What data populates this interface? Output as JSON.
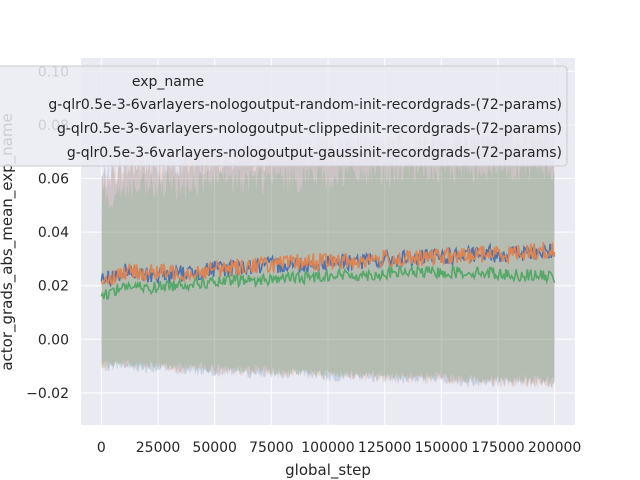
{
  "chart_data": {
    "type": "line",
    "title": "",
    "xlabel": "global_step",
    "ylabel": "actor_grads_abs_mean_exp_name",
    "xlim": [
      -9000,
      209000
    ],
    "ylim": [
      -0.032,
      0.105
    ],
    "xticks": [
      0,
      25000,
      50000,
      75000,
      100000,
      125000,
      150000,
      175000,
      200000
    ],
    "yticks": [
      -0.02,
      0.0,
      0.02,
      0.04,
      0.06,
      0.08,
      0.1
    ],
    "ytick_labels": [
      "−0.02",
      "0.00",
      "0.02",
      "0.04",
      "0.06",
      "0.08",
      "0.10"
    ],
    "grid": true,
    "legend_placement": "top",
    "legend_title": "exp_name",
    "x": [
      0,
      10000,
      20000,
      30000,
      40000,
      50000,
      60000,
      70000,
      80000,
      90000,
      100000,
      110000,
      120000,
      130000,
      140000,
      150000,
      160000,
      170000,
      180000,
      190000,
      200000
    ],
    "series": [
      {
        "name": "g-qlr0.5e-3-6varlayers-nologoutput-random-init-recordgrads-(72-params)",
        "color": "#4c72b0",
        "values": [
          0.022,
          0.025,
          0.024,
          0.024,
          0.025,
          0.026,
          0.027,
          0.027,
          0.028,
          0.028,
          0.029,
          0.029,
          0.029,
          0.03,
          0.03,
          0.031,
          0.031,
          0.032,
          0.032,
          0.032,
          0.033
        ],
        "band_low": [
          -0.01,
          -0.01,
          -0.011,
          -0.011,
          -0.012,
          -0.012,
          -0.012,
          -0.013,
          -0.013,
          -0.013,
          -0.014,
          -0.014,
          -0.014,
          -0.015,
          -0.015,
          -0.015,
          -0.016,
          -0.016,
          -0.016,
          -0.016,
          -0.017
        ],
        "band_high": [
          0.06,
          0.064,
          0.064,
          0.064,
          0.066,
          0.067,
          0.068,
          0.068,
          0.069,
          0.07,
          0.071,
          0.071,
          0.072,
          0.072,
          0.073,
          0.074,
          0.074,
          0.075,
          0.075,
          0.075,
          0.076
        ]
      },
      {
        "name": "g-qlr0.5e-3-6varlayers-nologoutput-clippedinit-recordgrads-(72-params)",
        "color": "#dd8452",
        "values": [
          0.022,
          0.025,
          0.025,
          0.025,
          0.025,
          0.026,
          0.027,
          0.028,
          0.028,
          0.029,
          0.029,
          0.029,
          0.03,
          0.03,
          0.03,
          0.031,
          0.031,
          0.032,
          0.032,
          0.033,
          0.033
        ],
        "band_low": [
          -0.01,
          -0.01,
          -0.01,
          -0.011,
          -0.011,
          -0.012,
          -0.012,
          -0.012,
          -0.013,
          -0.013,
          -0.013,
          -0.014,
          -0.014,
          -0.015,
          -0.015,
          -0.015,
          -0.016,
          -0.016,
          -0.016,
          -0.017,
          -0.017
        ],
        "band_high": [
          0.062,
          0.066,
          0.066,
          0.066,
          0.067,
          0.068,
          0.069,
          0.07,
          0.071,
          0.071,
          0.072,
          0.072,
          0.073,
          0.074,
          0.074,
          0.075,
          0.075,
          0.076,
          0.076,
          0.077,
          0.077
        ]
      },
      {
        "name": "g-qlr0.5e-3-6varlayers-nologoutput-gaussinit-recordgrads-(72-params)",
        "color": "#55a868",
        "values": [
          0.016,
          0.02,
          0.019,
          0.02,
          0.021,
          0.021,
          0.022,
          0.022,
          0.023,
          0.023,
          0.024,
          0.024,
          0.024,
          0.025,
          0.025,
          0.025,
          0.025,
          0.025,
          0.024,
          0.024,
          0.023
        ],
        "band_low": [
          -0.009,
          -0.009,
          -0.01,
          -0.01,
          -0.01,
          -0.011,
          -0.011,
          -0.011,
          -0.012,
          -0.012,
          -0.013,
          -0.013,
          -0.013,
          -0.014,
          -0.014,
          -0.014,
          -0.015,
          -0.015,
          -0.015,
          -0.015,
          -0.015
        ],
        "band_high": [
          0.052,
          0.056,
          0.056,
          0.057,
          0.058,
          0.059,
          0.059,
          0.06,
          0.06,
          0.061,
          0.061,
          0.062,
          0.062,
          0.063,
          0.063,
          0.063,
          0.064,
          0.064,
          0.064,
          0.064,
          0.064
        ]
      }
    ]
  }
}
